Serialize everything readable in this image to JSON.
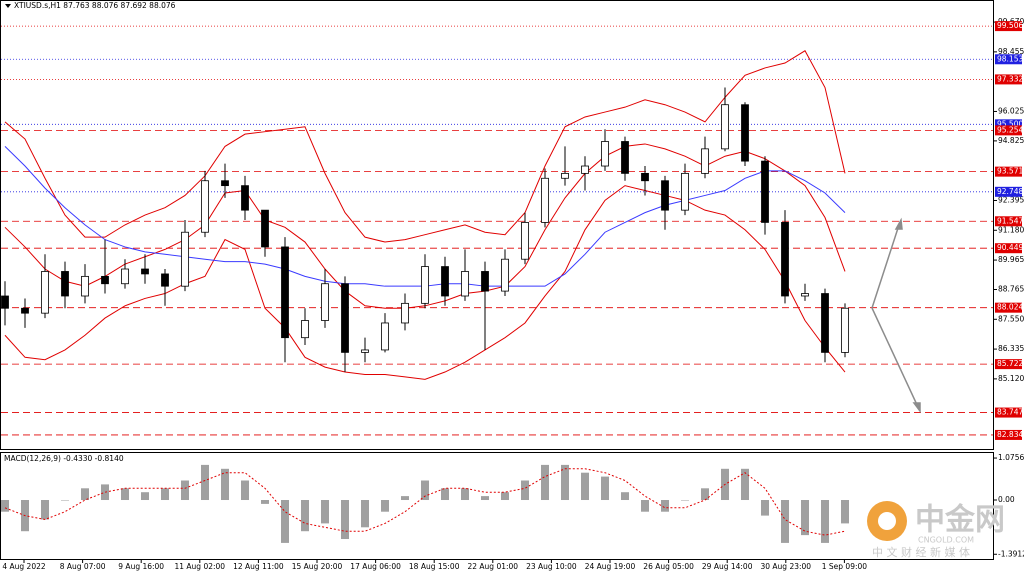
{
  "chart_data": [
    {
      "type": "candlestick",
      "title": "XTIUSD.s,H1  87.763 88.076 87.692 88.076",
      "ylim": [
        82.22,
        100.57
      ],
      "yticks": [
        {
          "value": 99.67,
          "label": "99.670"
        },
        98.455,
        96.025,
        94.825,
        92.395,
        {
          "value": 91.18,
          "label": "91.180"
        },
        89.965,
        88.765,
        {
          "value": 87.55,
          "label": "87.550"
        },
        86.335,
        {
          "value": 85.12,
          "label": "85.120"
        }
      ],
      "levels": [
        {
          "value": 99.506,
          "color": "#e00000",
          "style": "dotted"
        },
        {
          "value": 98.153,
          "color": "#2020e0",
          "style": "dotted"
        },
        {
          "value": 97.332,
          "color": "#e00000",
          "style": "dotted"
        },
        {
          "value": 95.5,
          "label": "95.500",
          "color": "#2020e0",
          "style": "dotted"
        },
        {
          "value": 95.254,
          "color": "#e00000",
          "style": "dashed"
        },
        {
          "value": 93.571,
          "color": "#e00000",
          "style": "dashed"
        },
        {
          "value": 92.748,
          "color": "#2020e0",
          "style": "dotted"
        },
        {
          "value": 91.547,
          "color": "#e00000",
          "style": "dashed"
        },
        {
          "value": 90.449,
          "color": "#e00000",
          "style": "dashed"
        },
        {
          "value": 88.024,
          "color": "#e00000",
          "style": "dashed"
        },
        {
          "value": 85.722,
          "color": "#e00000",
          "style": "dashed"
        },
        {
          "value": 83.747,
          "color": "#e00000",
          "style": "dashed"
        },
        {
          "value": 82.834,
          "color": "#e00000",
          "style": "dashed"
        }
      ],
      "x_labels": [
        "4 Aug 2022",
        "8 Aug 07:00",
        "9 Aug 16:00",
        "11 Aug 02:00",
        "12 Aug 11:00",
        "15 Aug 20:00",
        "17 Aug 06:00",
        "18 Aug 15:00",
        "22 Aug 01:00",
        "23 Aug 10:00",
        "24 Aug 19:00",
        "26 Aug 05:00",
        "29 Aug 14:00",
        "30 Aug 23:00",
        "1 Sep 09:00"
      ],
      "color": "#000000",
      "open": [
        88.5,
        88.0,
        87.8,
        89.5,
        88.5,
        89.3,
        89.0,
        89.6,
        89.4,
        88.9,
        91.1,
        93.2,
        93.0,
        92.0,
        90.5,
        86.8,
        87.5,
        89.0,
        86.2,
        86.3,
        87.4,
        88.2,
        89.7,
        88.5,
        89.5,
        88.7,
        90.0,
        91.5,
        93.3,
        93.5,
        93.8,
        94.8,
        93.5,
        93.2,
        92.0,
        93.5,
        94.5,
        96.3,
        94.0,
        91.5,
        88.5,
        88.6,
        86.2
      ],
      "high": [
        89.1,
        88.4,
        90.2,
        89.9,
        89.8,
        90.8,
        90.0,
        90.2,
        89.6,
        91.6,
        93.6,
        93.9,
        93.4,
        92.0,
        90.9,
        88.0,
        89.6,
        89.3,
        86.8,
        87.8,
        88.6,
        90.2,
        90.1,
        90.4,
        89.9,
        90.4,
        91.9,
        93.7,
        94.6,
        94.2,
        95.3,
        95.0,
        93.8,
        93.4,
        93.9,
        95.0,
        97.0,
        96.4,
        94.2,
        92.0,
        89.0,
        88.8,
        88.2
      ],
      "low": [
        87.3,
        87.2,
        87.6,
        88.0,
        88.2,
        88.6,
        88.8,
        89.0,
        88.1,
        88.7,
        90.9,
        92.5,
        91.6,
        90.1,
        85.8,
        86.5,
        87.2,
        85.4,
        85.8,
        86.2,
        87.1,
        88.0,
        88.1,
        88.3,
        86.3,
        88.5,
        89.8,
        91.3,
        93.0,
        92.8,
        93.6,
        93.2,
        92.6,
        91.2,
        91.8,
        93.3,
        94.4,
        93.8,
        91.0,
        88.2,
        88.3,
        85.8,
        86.0
      ],
      "close": [
        88.0,
        87.8,
        89.5,
        88.5,
        89.3,
        89.0,
        89.6,
        89.4,
        88.9,
        91.1,
        93.2,
        93.0,
        92.0,
        90.5,
        86.8,
        87.5,
        89.0,
        86.2,
        86.3,
        87.4,
        88.2,
        89.7,
        88.5,
        89.5,
        88.7,
        90.0,
        91.5,
        93.3,
        93.5,
        93.8,
        94.8,
        93.5,
        93.2,
        92.0,
        93.5,
        94.5,
        96.3,
        94.0,
        91.5,
        88.5,
        88.6,
        86.2,
        88.0
      ],
      "series": [
        {
          "color": "#e00000",
          "values": [
            95.6,
            94.9,
            93.3,
            91.8,
            90.9,
            90.9,
            91.4,
            91.8,
            92.1,
            92.6,
            93.4,
            94.6,
            95.1,
            95.2,
            95.3,
            95.4,
            93.5,
            91.9,
            90.9,
            90.7,
            90.8,
            91.0,
            91.2,
            91.4,
            91.1,
            91.0,
            91.9,
            93.8,
            95.4,
            95.8,
            96.0,
            96.2,
            96.5,
            96.3,
            96.0,
            95.6,
            96.6,
            97.5,
            97.8,
            98.0,
            98.5,
            97.0,
            93.5
          ]
        },
        {
          "color": "#e00000",
          "values": [
            91.3,
            90.5,
            89.6,
            89.1,
            88.9,
            89.3,
            89.8,
            90.1,
            90.4,
            90.8,
            91.4,
            92.7,
            92.8,
            91.6,
            91.3,
            90.7,
            89.6,
            88.7,
            88.1,
            88.0,
            88.0,
            88.1,
            88.3,
            88.6,
            88.7,
            88.9,
            89.7,
            91.2,
            92.5,
            93.5,
            94.2,
            94.6,
            94.7,
            94.5,
            94.2,
            93.8,
            94.2,
            94.4,
            94.1,
            93.6,
            93.0,
            91.7,
            89.5
          ]
        },
        {
          "color": "#e00000",
          "values": [
            86.9,
            86.0,
            85.9,
            86.3,
            86.9,
            87.6,
            88.1,
            88.4,
            88.6,
            89.0,
            89.3,
            90.8,
            90.4,
            88.0,
            87.2,
            86.0,
            85.6,
            85.4,
            85.3,
            85.3,
            85.2,
            85.1,
            85.4,
            85.8,
            86.3,
            86.8,
            87.4,
            88.5,
            89.5,
            91.2,
            92.4,
            93.0,
            92.8,
            92.6,
            92.4,
            92.0,
            91.8,
            91.2,
            90.4,
            89.1,
            87.5,
            86.4,
            85.4
          ]
        },
        {
          "color": "#3a3aff",
          "values": [
            94.6,
            93.8,
            92.9,
            92.1,
            91.4,
            90.8,
            90.5,
            90.3,
            90.2,
            90.1,
            90.0,
            89.9,
            89.9,
            89.8,
            89.6,
            89.3,
            89.1,
            89.0,
            89.0,
            88.9,
            88.9,
            88.9,
            89.0,
            89.0,
            88.9,
            88.9,
            88.9,
            88.9,
            89.4,
            90.2,
            91.1,
            91.5,
            91.9,
            92.2,
            92.4,
            92.6,
            92.8,
            93.3,
            93.6,
            93.6,
            93.2,
            92.7,
            91.9
          ]
        }
      ]
    },
    {
      "type": "macd",
      "title": "MACD(12,26,9) -0.4330 -0.8140",
      "ylim": [
        -1.615,
        1.205
      ],
      "yticks": [
        1.0756,
        {
          "value": 0,
          "label": "0.00"
        },
        -1.3912
      ],
      "histogram": {
        "color": "#a0a0a0",
        "values": [
          -0.3,
          -0.8,
          -0.5,
          0.0,
          0.3,
          0.4,
          0.3,
          0.2,
          0.3,
          0.5,
          0.9,
          0.8,
          0.5,
          -0.1,
          -1.1,
          -0.8,
          -0.6,
          -1.0,
          -0.7,
          -0.3,
          0.1,
          0.5,
          0.3,
          0.3,
          0.1,
          0.2,
          0.5,
          0.9,
          0.9,
          0.7,
          0.6,
          0.2,
          -0.3,
          -0.3,
          0.0,
          0.3,
          0.8,
          0.8,
          -0.4,
          -1.1,
          -0.9,
          -1.1,
          -0.6
        ]
      },
      "signal": {
        "color": "#e00000",
        "values": [
          -0.2,
          -0.4,
          -0.5,
          -0.3,
          0.0,
          0.2,
          0.3,
          0.3,
          0.3,
          0.3,
          0.5,
          0.7,
          0.7,
          0.3,
          -0.3,
          -0.6,
          -0.7,
          -0.8,
          -0.8,
          -0.6,
          -0.3,
          0.1,
          0.3,
          0.3,
          0.2,
          0.2,
          0.3,
          0.6,
          0.8,
          0.8,
          0.7,
          0.5,
          0.1,
          -0.2,
          -0.2,
          0.0,
          0.4,
          0.7,
          0.3,
          -0.5,
          -0.8,
          -0.9,
          -0.8
        ]
      }
    }
  ],
  "watermark": {
    "brand": "中金网",
    "site": "CNGOLD.COM",
    "tagline": "中 文 财 经 新 媒 体"
  }
}
